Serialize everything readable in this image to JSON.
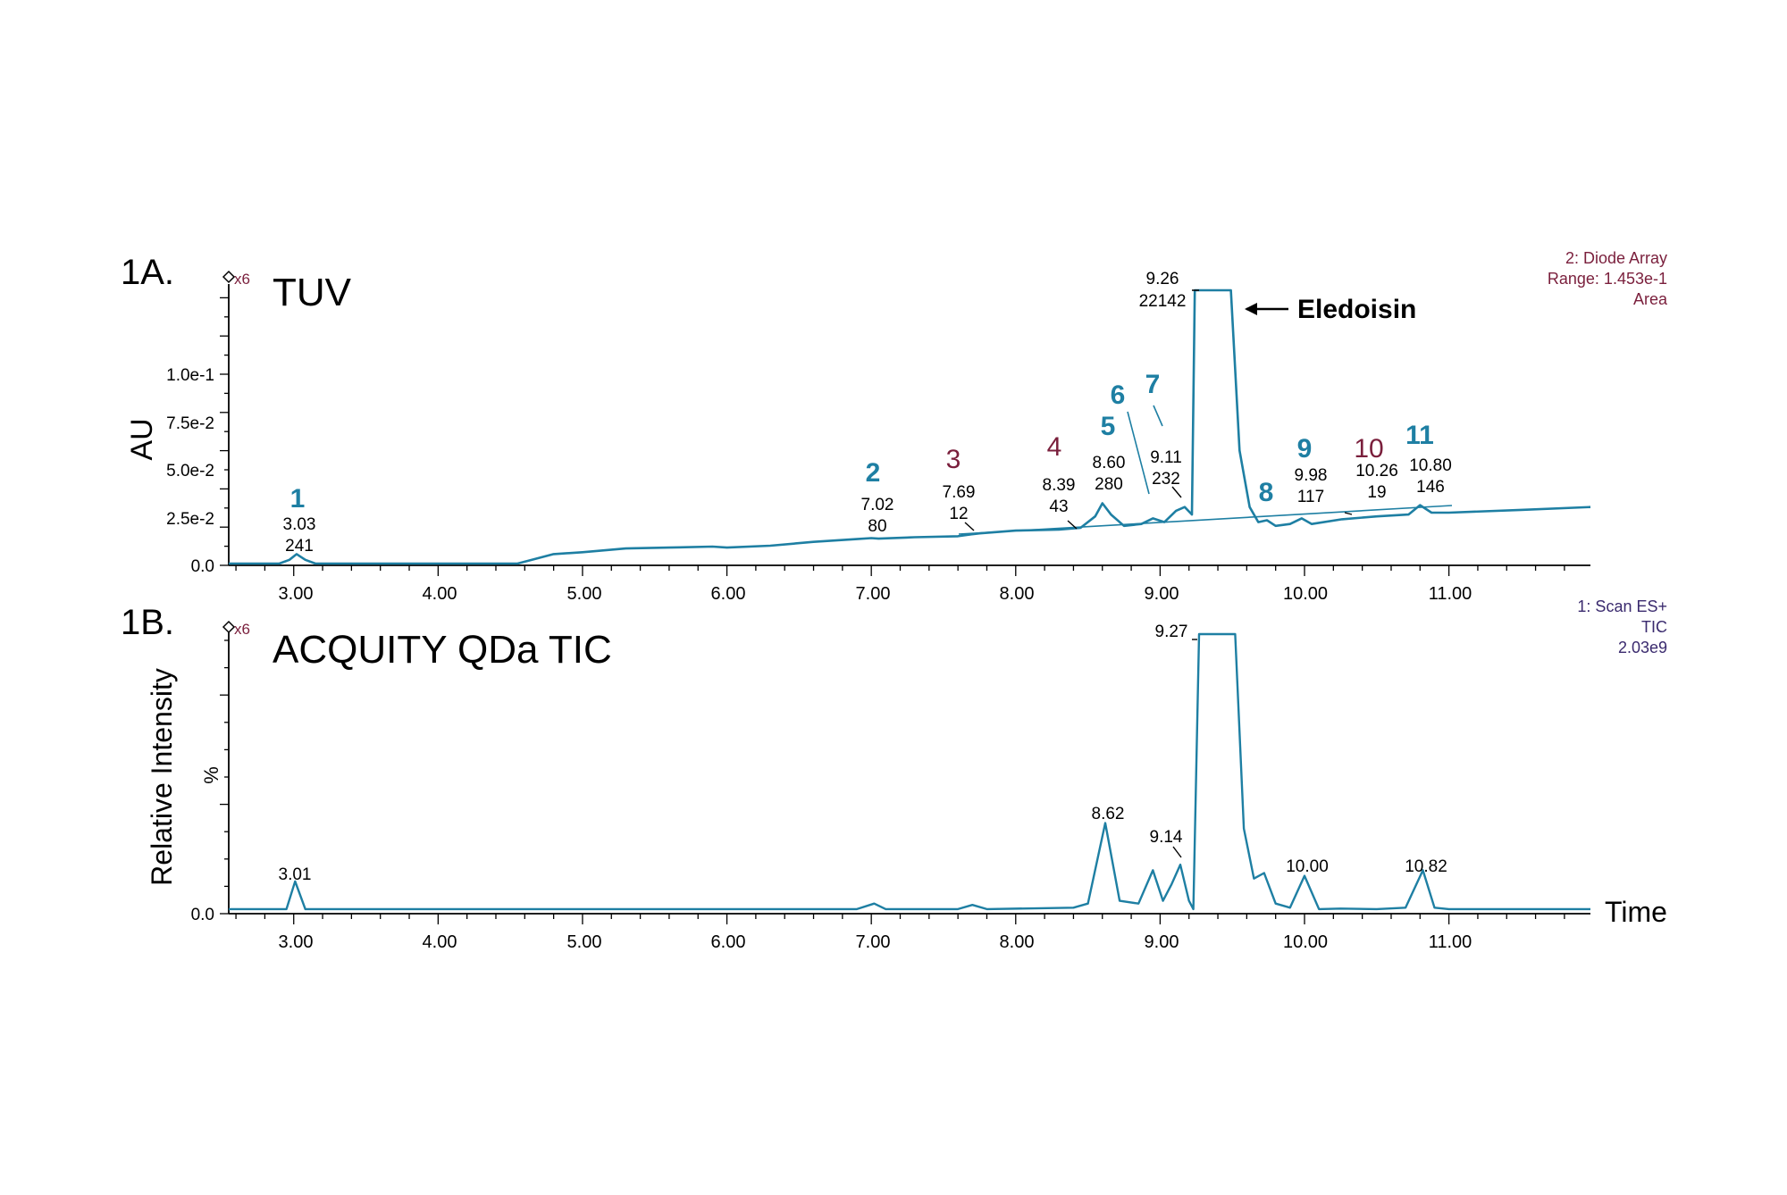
{
  "colors": {
    "trace": "#1e7fa3",
    "blue_label": "#1e7fa3",
    "maroon_label": "#7a1f3c",
    "tic_info": "#3a2a6e",
    "axis": "#000000",
    "x6_marker": "#7a1f3c"
  },
  "x_ticks": [
    "3.00",
    "4.00",
    "5.00",
    "6.00",
    "7.00",
    "8.00",
    "9.00",
    "10.00",
    "11.00"
  ],
  "panel_a": {
    "panel_label": "1A.",
    "detector_title": "TUV",
    "ylabel": "AU",
    "x6": "x6",
    "y_ticks": [
      "0.0",
      "2.5e-2",
      "5.0e-2",
      "7.5e-2",
      "1.0e-1"
    ],
    "info": [
      "2: Diode Array",
      "Range: 1.453e-1",
      "Area"
    ],
    "eledoisin_label": "Eledoisin",
    "main_peak": {
      "time": "9.26",
      "area": "22142"
    },
    "peaks": [
      {
        "num": "1",
        "time": "3.03",
        "area": "241",
        "color": "blue"
      },
      {
        "num": "2",
        "time": "7.02",
        "area": "80",
        "color": "blue"
      },
      {
        "num": "3",
        "time": "7.69",
        "area": "12",
        "color": "maroon"
      },
      {
        "num": "4",
        "time": "8.39",
        "area": "43",
        "color": "maroon"
      },
      {
        "num": "5",
        "time": "8.60",
        "area": "280",
        "color": "blue"
      },
      {
        "num": "6",
        "time": "",
        "area": "",
        "color": "blue"
      },
      {
        "num": "7",
        "time": "9.11",
        "area": "232",
        "color": "blue"
      },
      {
        "num": "8",
        "time": "",
        "area": "",
        "color": "blue"
      },
      {
        "num": "9",
        "time": "9.98",
        "area": "117",
        "color": "blue"
      },
      {
        "num": "10",
        "time": "10.26",
        "area": "19",
        "color": "maroon"
      },
      {
        "num": "11",
        "time": "10.80",
        "area": "146",
        "color": "blue"
      }
    ]
  },
  "panel_b": {
    "panel_label": "1B.",
    "detector_title": "ACQUITY QDa TIC",
    "ylabel": "Relative Intensity",
    "y_unit": "%",
    "x6": "x6",
    "y_zero": "0.0",
    "xlabel": "Time",
    "info": [
      "1: Scan ES+",
      "TIC",
      "2.03e9"
    ],
    "peak_labels": [
      "3.01",
      "8.62",
      "9.14",
      "9.27",
      "10.00",
      "10.82"
    ]
  },
  "chart_data": [
    {
      "type": "line",
      "title": "TUV",
      "xlabel": "",
      "ylabel": "AU",
      "xlim": [
        2.55,
        11.98
      ],
      "ylim": [
        0,
        0.145
      ],
      "x": [
        2.55,
        2.9,
        2.97,
        3.02,
        3.08,
        3.15,
        3.3,
        4.55,
        4.65,
        4.8,
        5.0,
        5.3,
        5.6,
        5.9,
        6.0,
        6.3,
        6.6,
        6.9,
        7.0,
        7.05,
        7.3,
        7.6,
        7.69,
        7.75,
        8.0,
        8.3,
        8.45,
        8.55,
        8.6,
        8.66,
        8.75,
        8.87,
        8.95,
        9.03,
        9.11,
        9.17,
        9.22,
        9.24,
        9.49,
        9.55,
        9.62,
        9.68,
        9.74,
        9.8,
        9.9,
        9.98,
        10.05,
        10.26,
        10.5,
        10.72,
        10.8,
        10.88,
        11.0,
        11.5,
        11.98
      ],
      "y": [
        0.0,
        0.0,
        0.002,
        0.005,
        0.002,
        0.0,
        0.0,
        0.0,
        0.002,
        0.005,
        0.006,
        0.008,
        0.0085,
        0.009,
        0.0085,
        0.0095,
        0.0115,
        0.013,
        0.0135,
        0.0132,
        0.014,
        0.0145,
        0.0155,
        0.016,
        0.0175,
        0.018,
        0.019,
        0.025,
        0.032,
        0.026,
        0.02,
        0.021,
        0.024,
        0.022,
        0.028,
        0.03,
        0.026,
        0.145,
        0.145,
        0.06,
        0.03,
        0.022,
        0.023,
        0.02,
        0.021,
        0.024,
        0.021,
        0.0235,
        0.025,
        0.026,
        0.031,
        0.027,
        0.027,
        0.0285,
        0.03
      ]
    },
    {
      "type": "line",
      "title": "ACQUITY QDa TIC",
      "xlabel": "Time",
      "ylabel": "Relative Intensity",
      "xlim": [
        2.55,
        11.98
      ],
      "ylim": [
        0,
        100
      ],
      "x": [
        2.55,
        2.95,
        3.01,
        3.08,
        3.2,
        6.9,
        7.02,
        7.1,
        7.6,
        7.7,
        7.8,
        8.4,
        8.5,
        8.62,
        8.72,
        8.85,
        8.95,
        9.02,
        9.08,
        9.14,
        9.2,
        9.23,
        9.27,
        9.52,
        9.58,
        9.65,
        9.72,
        9.8,
        9.9,
        10.0,
        10.1,
        10.25,
        10.5,
        10.7,
        10.82,
        10.9,
        11.0,
        11.98
      ],
      "y": [
        1,
        1,
        11,
        1,
        1,
        1,
        3,
        1,
        1,
        2.5,
        1,
        1.5,
        3,
        32,
        4,
        3,
        15,
        4,
        10,
        17,
        4,
        1,
        100,
        100,
        30,
        12,
        14,
        3,
        1.5,
        13,
        1,
        1.2,
        1,
        1.5,
        15,
        1.5,
        1,
        1
      ]
    }
  ]
}
